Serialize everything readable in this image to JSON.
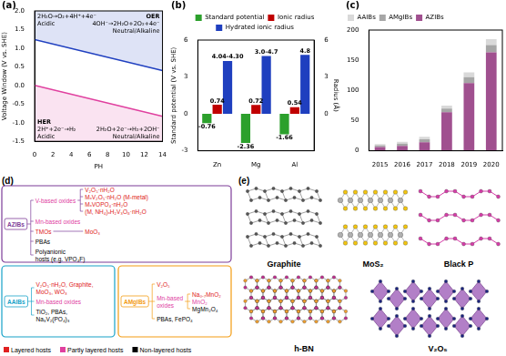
{
  "chart_data": [
    {
      "label": "(a)",
      "type": "line",
      "x_label": "PH",
      "y_label": "Voltage Window (V vs. SHE)",
      "x": [
        0,
        14
      ],
      "series": [
        {
          "color": "#2040c0",
          "values": [
            1.23,
            0.4
          ]
        },
        {
          "color": "#e0409f",
          "values": [
            0,
            -0.83
          ]
        }
      ],
      "xlim": [
        0,
        14
      ],
      "xticks": [
        0,
        2,
        4,
        6,
        8,
        10,
        12,
        14
      ],
      "ylim": [
        -1.5,
        2
      ],
      "yticks": [
        -1.5,
        {
          "value": -1,
          "label": "-1.0"
        },
        -0.5,
        {
          "value": 0,
          "label": "0.0"
        },
        0.5,
        {
          "value": 1,
          "label": "1.0"
        },
        1.5,
        {
          "value": 2,
          "label": "2.0"
        }
      ],
      "grid": false,
      "annotations": [
        [
          "2H₂O→O₂+4H⁺+4e⁻",
          "Acidic"
        ],
        [
          "OER",
          "4OH⁻→2H₂O+2O₂+4e⁻",
          "Neutral/Alkaline"
        ],
        [
          "HER",
          "2H⁺+2e⁻→H₂",
          "Acidic"
        ],
        [
          "2H₂O+2e⁻→H₂+2OH⁻",
          "Neutral/Alkaline"
        ]
      ]
    },
    {
      "label": "(b)",
      "type": "bar",
      "y_label": "Standard potential (V vs. SHE)",
      "y2_label": "Radius (Å)",
      "categories": [
        "Zn",
        "Mg",
        "Al"
      ],
      "series": [
        {
          "name": "Standard potential",
          "color": "#2ca02c",
          "values": [
            -0.76,
            -2.36,
            -1.66
          ]
        },
        {
          "name": "Ionic radius",
          "color": "#c00000",
          "values": [
            0.74,
            0.72,
            0.54
          ],
          "axis": "y2"
        },
        {
          "name": "Hydrated ionic radius",
          "color": "#1f3fbf",
          "values": [
            4.3,
            4.7,
            4.8
          ],
          "value_labels": [
            "4.04-4.30",
            "3.0-4.7",
            "4.8"
          ],
          "axis": "y2"
        }
      ],
      "ylim": [
        -3,
        6
      ],
      "yticks": [
        -3,
        0,
        3,
        6
      ],
      "y2lim": [
        -3,
        6
      ],
      "y2ticks": [
        0,
        3,
        6
      ],
      "legend": "top",
      "data_labels": true,
      "grid": false
    },
    {
      "label": "(c)",
      "type": "bar",
      "stacked": true,
      "categories": [
        "2015",
        "2016",
        "2017",
        "2018",
        "2019",
        "2020"
      ],
      "series": [
        {
          "name": "AAIBs",
          "color": "#d9d9d9",
          "values": [
            2,
            3,
            4,
            5,
            8,
            10
          ]
        },
        {
          "name": "AMgIBs",
          "color": "#a6a6a6",
          "values": [
            3,
            4,
            5,
            6,
            10,
            12
          ]
        },
        {
          "name": "AZIBs",
          "color": "#a0508f",
          "values": [
            6,
            8,
            14,
            64,
            112,
            163
          ]
        }
      ],
      "ylim": [
        0,
        200
      ],
      "yticks": [
        0,
        50,
        100,
        150,
        200
      ],
      "legend": "top-left",
      "grid": false
    }
  ],
  "diagram": {
    "label": "(d)",
    "groups": [
      {
        "title": "AZIBs",
        "color": "#7d3c98",
        "items": [
          {
            "lines": [
              "V-based oxides"
            ],
            "color": "#e0409f",
            "children": [
              {
                "lines": [
                  "V₂O₅·nH₂O"
                ],
                "color": "#e02020"
              },
              {
                "lines": [
                  "MₓV₂O₅·nH₂O (M-metal)"
                ],
                "color": "#e02020"
              },
              {
                "lines": [
                  "MₓVOPO₄·nH₂O"
                ],
                "color": "#e02020"
              },
              {
                "lines": [
                  "(M, NH₄)ₓH₂V₃O₈·nH₂O"
                ],
                "color": "#e02020"
              }
            ]
          },
          {
            "lines": [
              "Mn-based oxides"
            ],
            "color": "#e0409f"
          },
          {
            "lines": [
              "TMOs"
            ],
            "color": "#e02020",
            "children": [
              {
                "lines": [
                  "MoO₃"
                ],
                "color": "#e02020"
              }
            ]
          },
          {
            "lines": [
              "PBAs"
            ],
            "color": "#000000"
          },
          {
            "lines": [
              "Polyanionic",
              "hosts (e.g. VPO₄F)"
            ],
            "color": "#000000"
          }
        ]
      },
      {
        "title": "AAIBs",
        "color": "#17a2c8",
        "items": [
          {
            "lines": [
              "V₂O₅·nH₂O, Graphite,",
              "MoO₃, WO₃"
            ],
            "color": "#e02020"
          },
          {
            "lines": [
              "Mn-based oxides"
            ],
            "color": "#e0409f"
          },
          {
            "lines": [
              "TiO₂, PBAs,",
              "Na₃V₂(PO₄)₃"
            ],
            "color": "#000000"
          }
        ]
      },
      {
        "title": "AMgIBs",
        "color": "#f39c12",
        "items": [
          {
            "lines": [
              "V₂O₅"
            ],
            "color": "#e02020"
          },
          {
            "lines": [
              "Mn-based",
              "oxides"
            ],
            "color": "#e0409f",
            "children": [
              {
                "lines": [
                  "Na₀.₇MnO₂"
                ],
                "color": "#e02020"
              },
              {
                "lines": [
                  "MnO₂"
                ],
                "color": "#e0409f"
              },
              {
                "lines": [
                  "MgMn₂O₄"
                ],
                "color": "#000000"
              }
            ]
          },
          {
            "lines": [
              "PBAs, FePO₄"
            ],
            "color": "#000000"
          }
        ]
      }
    ],
    "legend": [
      {
        "label": "Layered hosts",
        "color": "#e02020"
      },
      {
        "label": "Partly layered hosts",
        "color": "#e0409f"
      },
      {
        "label": "Non-layered hosts",
        "color": "#000000"
      }
    ]
  },
  "structures": {
    "label": "(e)",
    "items": [
      "Graphite",
      "MoS₂",
      "Black P",
      "h-BN",
      "V₂O₅"
    ]
  }
}
